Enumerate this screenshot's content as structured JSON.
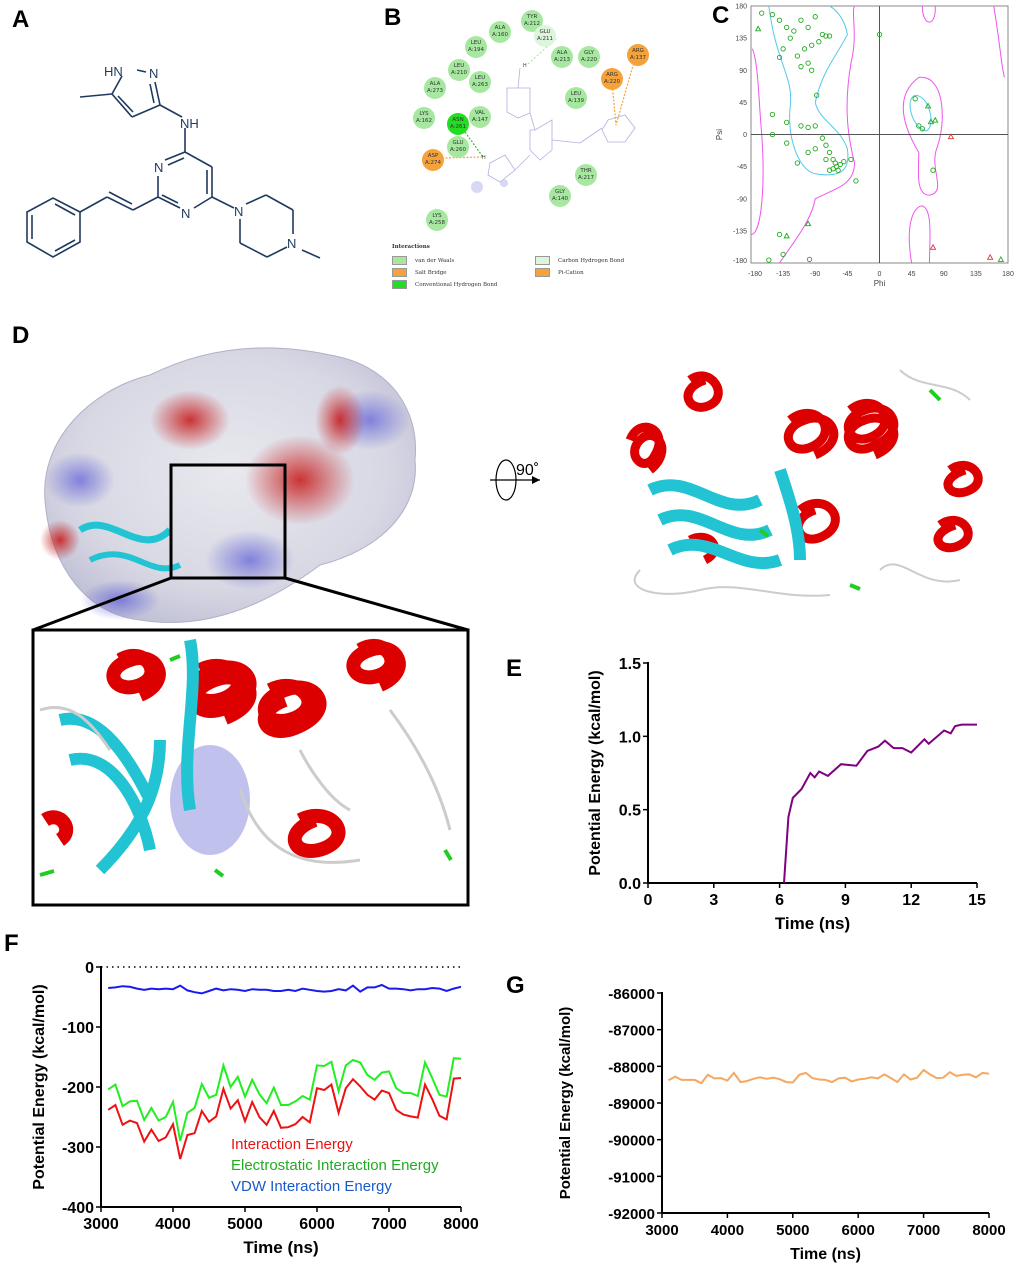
{
  "panels": {
    "a": "A",
    "b": "B",
    "c": "C",
    "d": "D",
    "e": "E",
    "f": "F",
    "g": "G"
  },
  "molecule": {
    "atoms": {
      "hn": "HN",
      "n_pyrazole": "N",
      "nh": "NH",
      "n_pyr1": "N",
      "n_pyr3": "N",
      "n_pip1": "N",
      "n_pip4": "N"
    },
    "color": "#1f3a5f"
  },
  "interaction_diagram": {
    "residues": [
      {
        "label": "TYR A:212",
        "type": "vdw"
      },
      {
        "label": "ALA A:160",
        "type": "vdw"
      },
      {
        "label": "GLU A:211",
        "type": "carbon_h"
      },
      {
        "label": "LEU A:194",
        "type": "vdw"
      },
      {
        "label": "ALA A:213",
        "type": "vdw"
      },
      {
        "label": "GLY A:220",
        "type": "vdw"
      },
      {
        "label": "ARG A:220",
        "type": "pi_cation"
      },
      {
        "label": "ARG A:137",
        "type": "pi_cation"
      },
      {
        "label": "LEU A:210",
        "type": "vdw"
      },
      {
        "label": "LEU A:263",
        "type": "vdw"
      },
      {
        "label": "ALA A:273",
        "type": "vdw"
      },
      {
        "label": "LEU A:139",
        "type": "vdw"
      },
      {
        "label": "LYS A:162",
        "type": "vdw"
      },
      {
        "label": "VAL A:147",
        "type": "vdw"
      },
      {
        "label": "ASN A:261",
        "type": "hbond"
      },
      {
        "label": "GLU A:260",
        "type": "vdw"
      },
      {
        "label": "ASP A:274",
        "type": "salt_bridge"
      },
      {
        "label": "THR A:217",
        "type": "vdw"
      },
      {
        "label": "GLY A:140",
        "type": "vdw"
      },
      {
        "label": "LYS A:258",
        "type": "vdw"
      }
    ],
    "legend_title": "Interactions",
    "legend": [
      {
        "label": "van der Waals",
        "color": "#a6e8a0"
      },
      {
        "label": "Carbon Hydrogen Bond",
        "color": "#dcf5dc"
      },
      {
        "label": "Salt Bridge",
        "color": "#f5a23a"
      },
      {
        "label": "Pi-Cation",
        "color": "#f5a23a"
      },
      {
        "label": "Conventional Hydrogen Bond",
        "color": "#22dd22"
      }
    ],
    "h_label": "H"
  },
  "structure": {
    "rotation_label": "90˚",
    "helix_color": "#dd0000",
    "sheet_color": "#22c4d4",
    "turn_color": "#22cc22",
    "coil_color": "#cccccc"
  },
  "chart_data": [
    {
      "id": "C",
      "type": "scatter",
      "title": "",
      "xlabel": "Phi",
      "ylabel": "Psi",
      "xlim": [
        -180,
        180
      ],
      "ylim": [
        -180,
        180
      ],
      "xticks": [
        -180,
        -135,
        -90,
        -45,
        0,
        45,
        90,
        135,
        180
      ],
      "yticks": [
        -180,
        -135,
        -90,
        -45,
        0,
        45,
        90,
        135,
        180
      ],
      "series": [
        {
          "marker": "circle",
          "color": "#22aa22",
          "points": [
            [
              -165,
              170
            ],
            [
              -150,
              168
            ],
            [
              -140,
              160
            ],
            [
              -130,
              150
            ],
            [
              -120,
              145
            ],
            [
              -110,
              160
            ],
            [
              -100,
              150
            ],
            [
              -90,
              165
            ],
            [
              -80,
              140
            ],
            [
              -75,
              138
            ],
            [
              -70,
              138
            ],
            [
              -85,
              130
            ],
            [
              -95,
              125
            ],
            [
              -105,
              120
            ],
            [
              -115,
              110
            ],
            [
              -125,
              135
            ],
            [
              -135,
              120
            ],
            [
              -140,
              108
            ],
            [
              -100,
              100
            ],
            [
              -110,
              95
            ],
            [
              -95,
              90
            ],
            [
              -88,
              55
            ],
            [
              -150,
              28
            ],
            [
              -130,
              17
            ],
            [
              -110,
              12
            ],
            [
              -100,
              10
            ],
            [
              -90,
              12
            ],
            [
              -80,
              -5
            ],
            [
              -75,
              -15
            ],
            [
              -70,
              -25
            ],
            [
              -65,
              -35
            ],
            [
              -62,
              -40
            ],
            [
              -60,
              -45
            ],
            [
              -58,
              -50
            ],
            [
              -65,
              -48
            ],
            [
              -55,
              -42
            ],
            [
              -50,
              -38
            ],
            [
              -70,
              -50
            ],
            [
              -75,
              -35
            ],
            [
              -90,
              -20
            ],
            [
              -100,
              -25
            ],
            [
              -115,
              -40
            ],
            [
              -130,
              -12
            ],
            [
              -150,
              0
            ],
            [
              -40,
              -35
            ],
            [
              -33,
              -65
            ],
            [
              -98,
              -175
            ],
            [
              -135,
              -168
            ],
            [
              -140,
              -140
            ],
            [
              50,
              50
            ],
            [
              55,
              12
            ],
            [
              60,
              8
            ],
            [
              75,
              -50
            ],
            [
              0,
              140
            ],
            [
              -155,
              -176
            ]
          ]
        },
        {
          "marker": "triangle",
          "color": "#22aa22",
          "points": [
            [
              -170,
              148
            ],
            [
              -130,
              -142
            ],
            [
              -100,
              -125
            ],
            [
              68,
              40
            ],
            [
              72,
              18
            ],
            [
              78,
              20
            ],
            [
              170,
              -175
            ]
          ]
        },
        {
          "marker": "triangle",
          "color": "#dd3333",
          "points": [
            [
              100,
              -3
            ],
            [
              75,
              -158
            ],
            [
              155,
              -172
            ]
          ]
        }
      ],
      "contours": {
        "core_color": "#55c8e8",
        "allowed_color": "#ee55ee"
      },
      "grid": false
    },
    {
      "id": "E",
      "type": "line",
      "title": "",
      "xlabel": "Time (ns)",
      "ylabel": "Potential Energy (kcal/mol)",
      "xlim": [
        0,
        15
      ],
      "ylim": [
        0,
        1.5
      ],
      "xticks": [
        0,
        3,
        6,
        9,
        12,
        15
      ],
      "yticks": [
        0.0,
        0.5,
        1.0,
        1.5
      ],
      "ytick_labels": [
        "0.0",
        "0.5",
        "1.0",
        "1.5"
      ],
      "series": [
        {
          "color": "#800080",
          "x": [
            6.2,
            6.4,
            6.6,
            7.0,
            7.4,
            7.6,
            7.8,
            8.2,
            8.8,
            9.5,
            10.0,
            10.5,
            10.8,
            11.2,
            11.6,
            12.0,
            12.6,
            12.8,
            13.5,
            13.8,
            14.0,
            14.3,
            14.7,
            15.0
          ],
          "y": [
            0.0,
            0.45,
            0.58,
            0.64,
            0.75,
            0.72,
            0.76,
            0.73,
            0.81,
            0.8,
            0.9,
            0.93,
            0.97,
            0.92,
            0.92,
            0.89,
            0.98,
            0.95,
            1.04,
            1.02,
            1.07,
            1.08,
            1.08,
            1.08
          ]
        }
      ],
      "grid": false
    },
    {
      "id": "F",
      "type": "line",
      "title": "",
      "xlabel": "Time (ns)",
      "ylabel": "Potential Energy (kcal/mol)",
      "xlim": [
        3000,
        8000
      ],
      "ylim": [
        -400,
        0
      ],
      "xticks": [
        3000,
        4000,
        5000,
        6000,
        7000,
        8000
      ],
      "yticks": [
        -400,
        -300,
        -200,
        -100,
        0
      ],
      "zero_line": "dotted",
      "legend_placement": "inside-bottom",
      "x": [
        3100,
        3200,
        3300,
        3400,
        3500,
        3600,
        3700,
        3800,
        3900,
        4000,
        4100,
        4200,
        4300,
        4400,
        4500,
        4600,
        4700,
        4800,
        4900,
        5000,
        5100,
        5200,
        5300,
        5400,
        5500,
        5600,
        5700,
        5800,
        5900,
        6000,
        6100,
        6200,
        6300,
        6400,
        6500,
        6600,
        6700,
        6800,
        6900,
        7000,
        7100,
        7200,
        7300,
        7400,
        7500,
        7600,
        7700,
        7800,
        7900,
        8000
      ],
      "series": [
        {
          "name": "Interaction Energy",
          "color": "#ee1111",
          "values": [
            -238,
            -230,
            -263,
            -256,
            -260,
            -291,
            -271,
            -290,
            -284,
            -262,
            -320,
            -280,
            -277,
            -240,
            -258,
            -249,
            -203,
            -236,
            -222,
            -257,
            -225,
            -250,
            -263,
            -240,
            -268,
            -267,
            -262,
            -250,
            -259,
            -202,
            -205,
            -196,
            -243,
            -202,
            -187,
            -199,
            -213,
            -221,
            -206,
            -210,
            -238,
            -246,
            -249,
            -251,
            -196,
            -220,
            -248,
            -254,
            -186,
            -185
          ]
        },
        {
          "name": "Electrostatic Interaction Energy",
          "color": "#22ee22",
          "label_color": "#22aa22",
          "values": [
            -204,
            -196,
            -232,
            -224,
            -223,
            -255,
            -235,
            -256,
            -250,
            -225,
            -290,
            -243,
            -235,
            -195,
            -218,
            -213,
            -164,
            -200,
            -183,
            -216,
            -188,
            -212,
            -227,
            -201,
            -230,
            -230,
            -224,
            -215,
            -221,
            -164,
            -165,
            -158,
            -207,
            -164,
            -155,
            -159,
            -180,
            -188,
            -176,
            -174,
            -202,
            -210,
            -210,
            -215,
            -159,
            -185,
            -213,
            -216,
            -152,
            -153
          ]
        },
        {
          "name": "VDW Interaction Energy",
          "color": "#1a1aee",
          "label_color": "#1a5acc",
          "values": [
            -35,
            -34,
            -32,
            -33,
            -36,
            -38,
            -36,
            -37,
            -36,
            -37,
            -31,
            -39,
            -42,
            -44,
            -40,
            -36,
            -39,
            -37,
            -38,
            -40,
            -37,
            -38,
            -38,
            -40,
            -40,
            -38,
            -40,
            -36,
            -38,
            -40,
            -41,
            -40,
            -37,
            -39,
            -31,
            -41,
            -34,
            -34,
            -30,
            -36,
            -36,
            -37,
            -39,
            -37,
            -37,
            -35,
            -36,
            -40,
            -36,
            -33
          ]
        }
      ],
      "grid": false
    },
    {
      "id": "G",
      "type": "line",
      "title": "",
      "xlabel": "Time (ns)",
      "ylabel": "Potential Energy (kcal/mol)",
      "xlim": [
        3000,
        8000
      ],
      "ylim": [
        -92000,
        -86000
      ],
      "xticks": [
        3000,
        4000,
        5000,
        6000,
        7000,
        8000
      ],
      "yticks": [
        -92000,
        -91000,
        -90000,
        -89000,
        -88000,
        -87000,
        -86000
      ],
      "x": [
        3100,
        3200,
        3300,
        3400,
        3500,
        3600,
        3700,
        3800,
        3900,
        4000,
        4100,
        4200,
        4300,
        4400,
        4500,
        4600,
        4700,
        4800,
        4900,
        5000,
        5100,
        5200,
        5300,
        5400,
        5500,
        5600,
        5700,
        5800,
        5900,
        6000,
        6100,
        6200,
        6300,
        6400,
        6500,
        6600,
        6700,
        6800,
        6900,
        7000,
        7100,
        7200,
        7300,
        7400,
        7500,
        7600,
        7700,
        7800,
        7900,
        8000
      ],
      "series": [
        {
          "color": "#f5a860",
          "values": [
            -88380,
            -88280,
            -88370,
            -88370,
            -88370,
            -88460,
            -88230,
            -88330,
            -88320,
            -88390,
            -88180,
            -88430,
            -88400,
            -88340,
            -88300,
            -88340,
            -88310,
            -88350,
            -88430,
            -88440,
            -88230,
            -88180,
            -88320,
            -88360,
            -88370,
            -88430,
            -88330,
            -88310,
            -88410,
            -88360,
            -88340,
            -88300,
            -88330,
            -88220,
            -88320,
            -88430,
            -88220,
            -88360,
            -88310,
            -88100,
            -88220,
            -88320,
            -88310,
            -88160,
            -88260,
            -88230,
            -88220,
            -88300,
            -88180,
            -88200
          ]
        }
      ],
      "grid": false
    }
  ]
}
